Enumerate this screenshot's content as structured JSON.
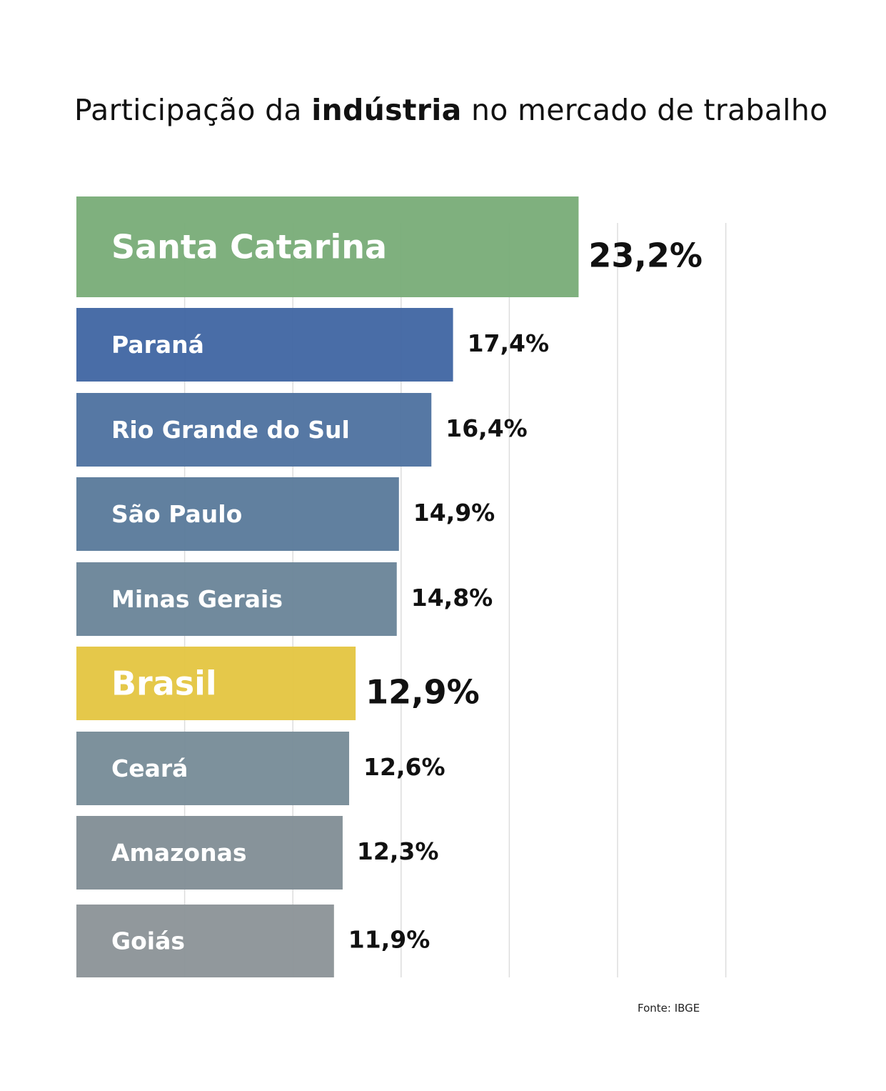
{
  "title": {
    "before": "Participação da ",
    "bold": "indústria",
    "after": " no mercado de trabalho"
  },
  "source": "Fonte: IBGE",
  "chart_data": {
    "type": "bar",
    "orientation": "horizontal",
    "title": "Participação da indústria no mercado de trabalho",
    "xlim": [
      0,
      30
    ],
    "grid": true,
    "categories": [
      "Santa Catarina",
      "Paraná",
      "Rio Grande do Sul",
      "São Paulo",
      "Minas Gerais",
      "Brasil",
      "Ceará",
      "Amazonas",
      "Goiás"
    ],
    "values": [
      23.2,
      17.4,
      16.4,
      14.9,
      14.8,
      12.9,
      12.6,
      12.3,
      11.9
    ],
    "value_labels": [
      "23,2%",
      "17,4%",
      "16,4%",
      "14,9%",
      "14,8%",
      "12,9%",
      "12,6%",
      "12,3%",
      "11,9%"
    ],
    "highlighted": [
      "Santa Catarina",
      "Brasil"
    ],
    "colors": [
      "#7aad79",
      "#4267a3",
      "#4f73a0",
      "#5b7b9b",
      "#6b8599",
      "#e4c643",
      "#788c98",
      "#828f96",
      "#8d9498"
    ]
  }
}
